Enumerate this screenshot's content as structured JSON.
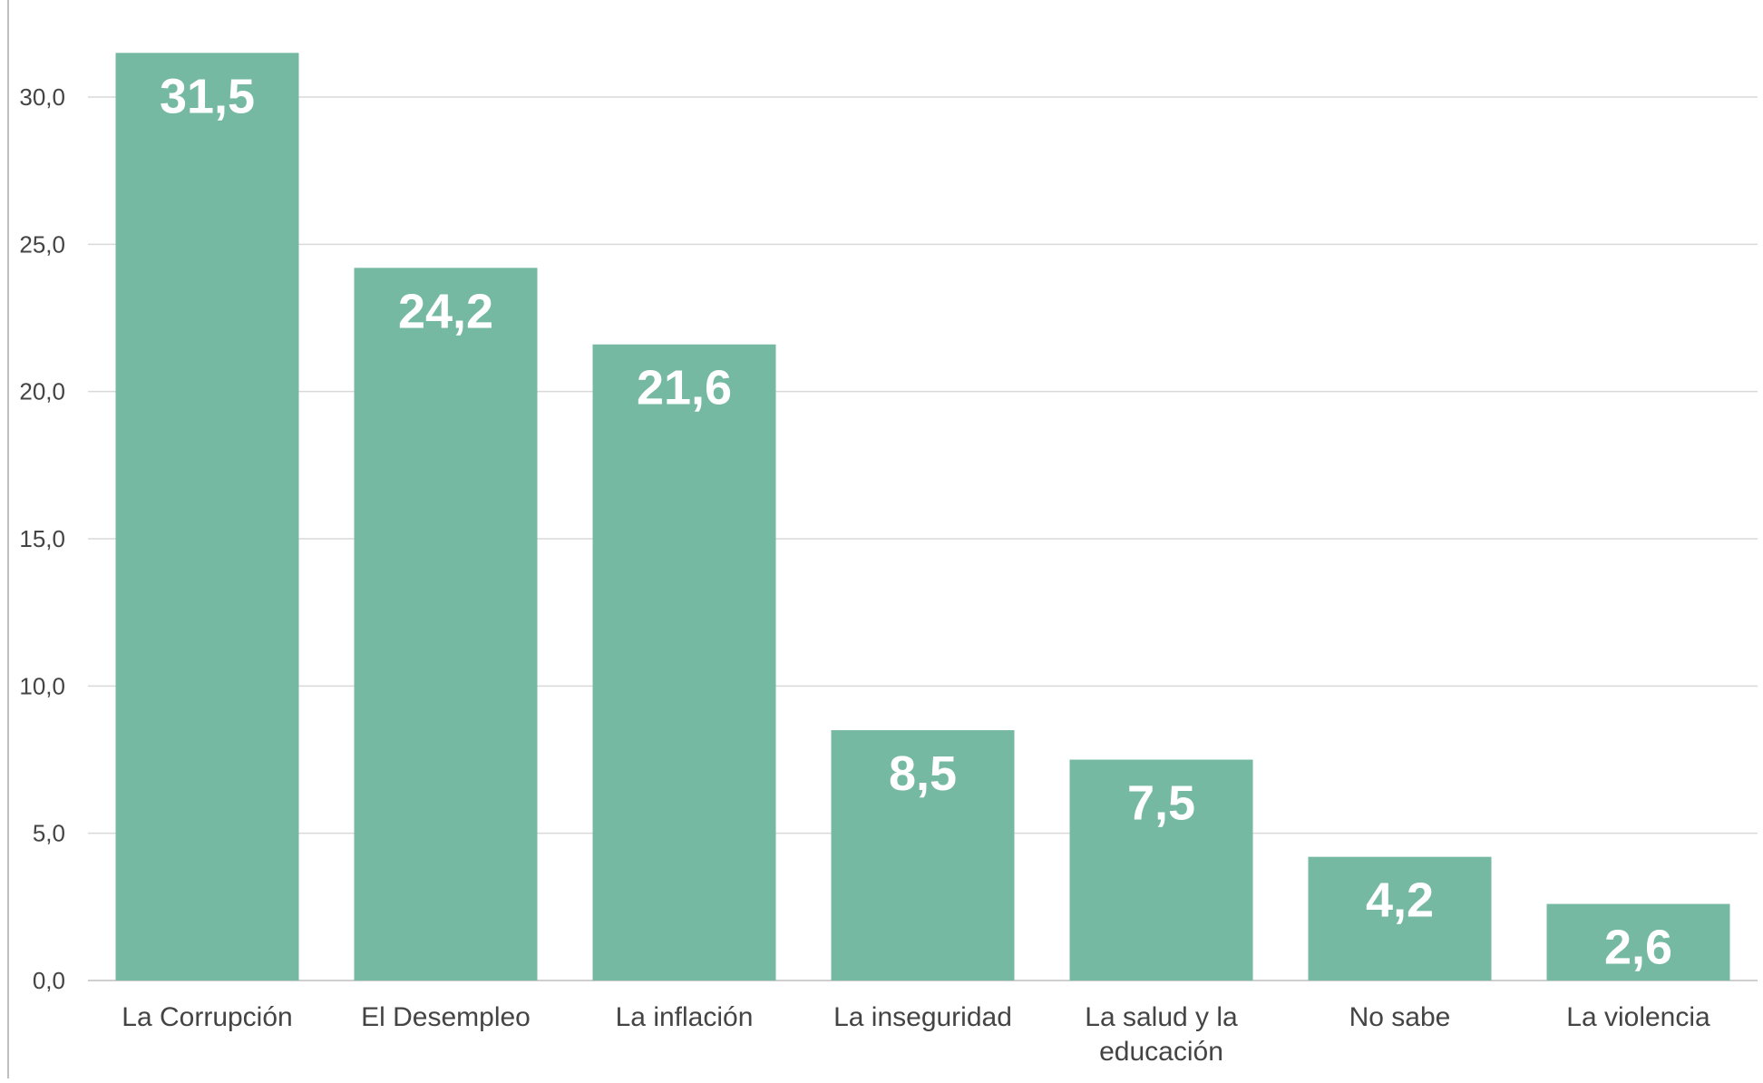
{
  "chart_data": {
    "type": "bar",
    "categories": [
      [
        "La Corrupción"
      ],
      [
        "El Desempleo"
      ],
      [
        "La inflación"
      ],
      [
        "La inseguridad"
      ],
      [
        "La salud y la",
        "educación"
      ],
      [
        "No sabe"
      ],
      [
        "La violencia"
      ]
    ],
    "values": [
      31.5,
      24.2,
      21.6,
      8.5,
      7.5,
      4.2,
      2.6
    ],
    "value_labels": [
      "31,5",
      "24,2",
      "21,6",
      "8,5",
      "7,5",
      "4,2",
      "2,6"
    ],
    "ylim": [
      0,
      30
    ],
    "yticks": [
      {
        "value": 0,
        "label": "0,0"
      },
      {
        "value": 5,
        "label": "5,0"
      },
      {
        "value": 10,
        "label": "10,0"
      },
      {
        "value": 15,
        "label": "15,0"
      },
      {
        "value": 20,
        "label": "20,0"
      },
      {
        "value": 25,
        "label": "25,0"
      },
      {
        "value": 30,
        "label": "30,0"
      }
    ],
    "grid": true,
    "title": "",
    "xlabel": "",
    "ylabel": "",
    "colors": {
      "bar": "#76b9a3",
      "grid": "#d9d9d9",
      "axis": "#bfbfbf",
      "value_text": "#ffffff"
    }
  }
}
